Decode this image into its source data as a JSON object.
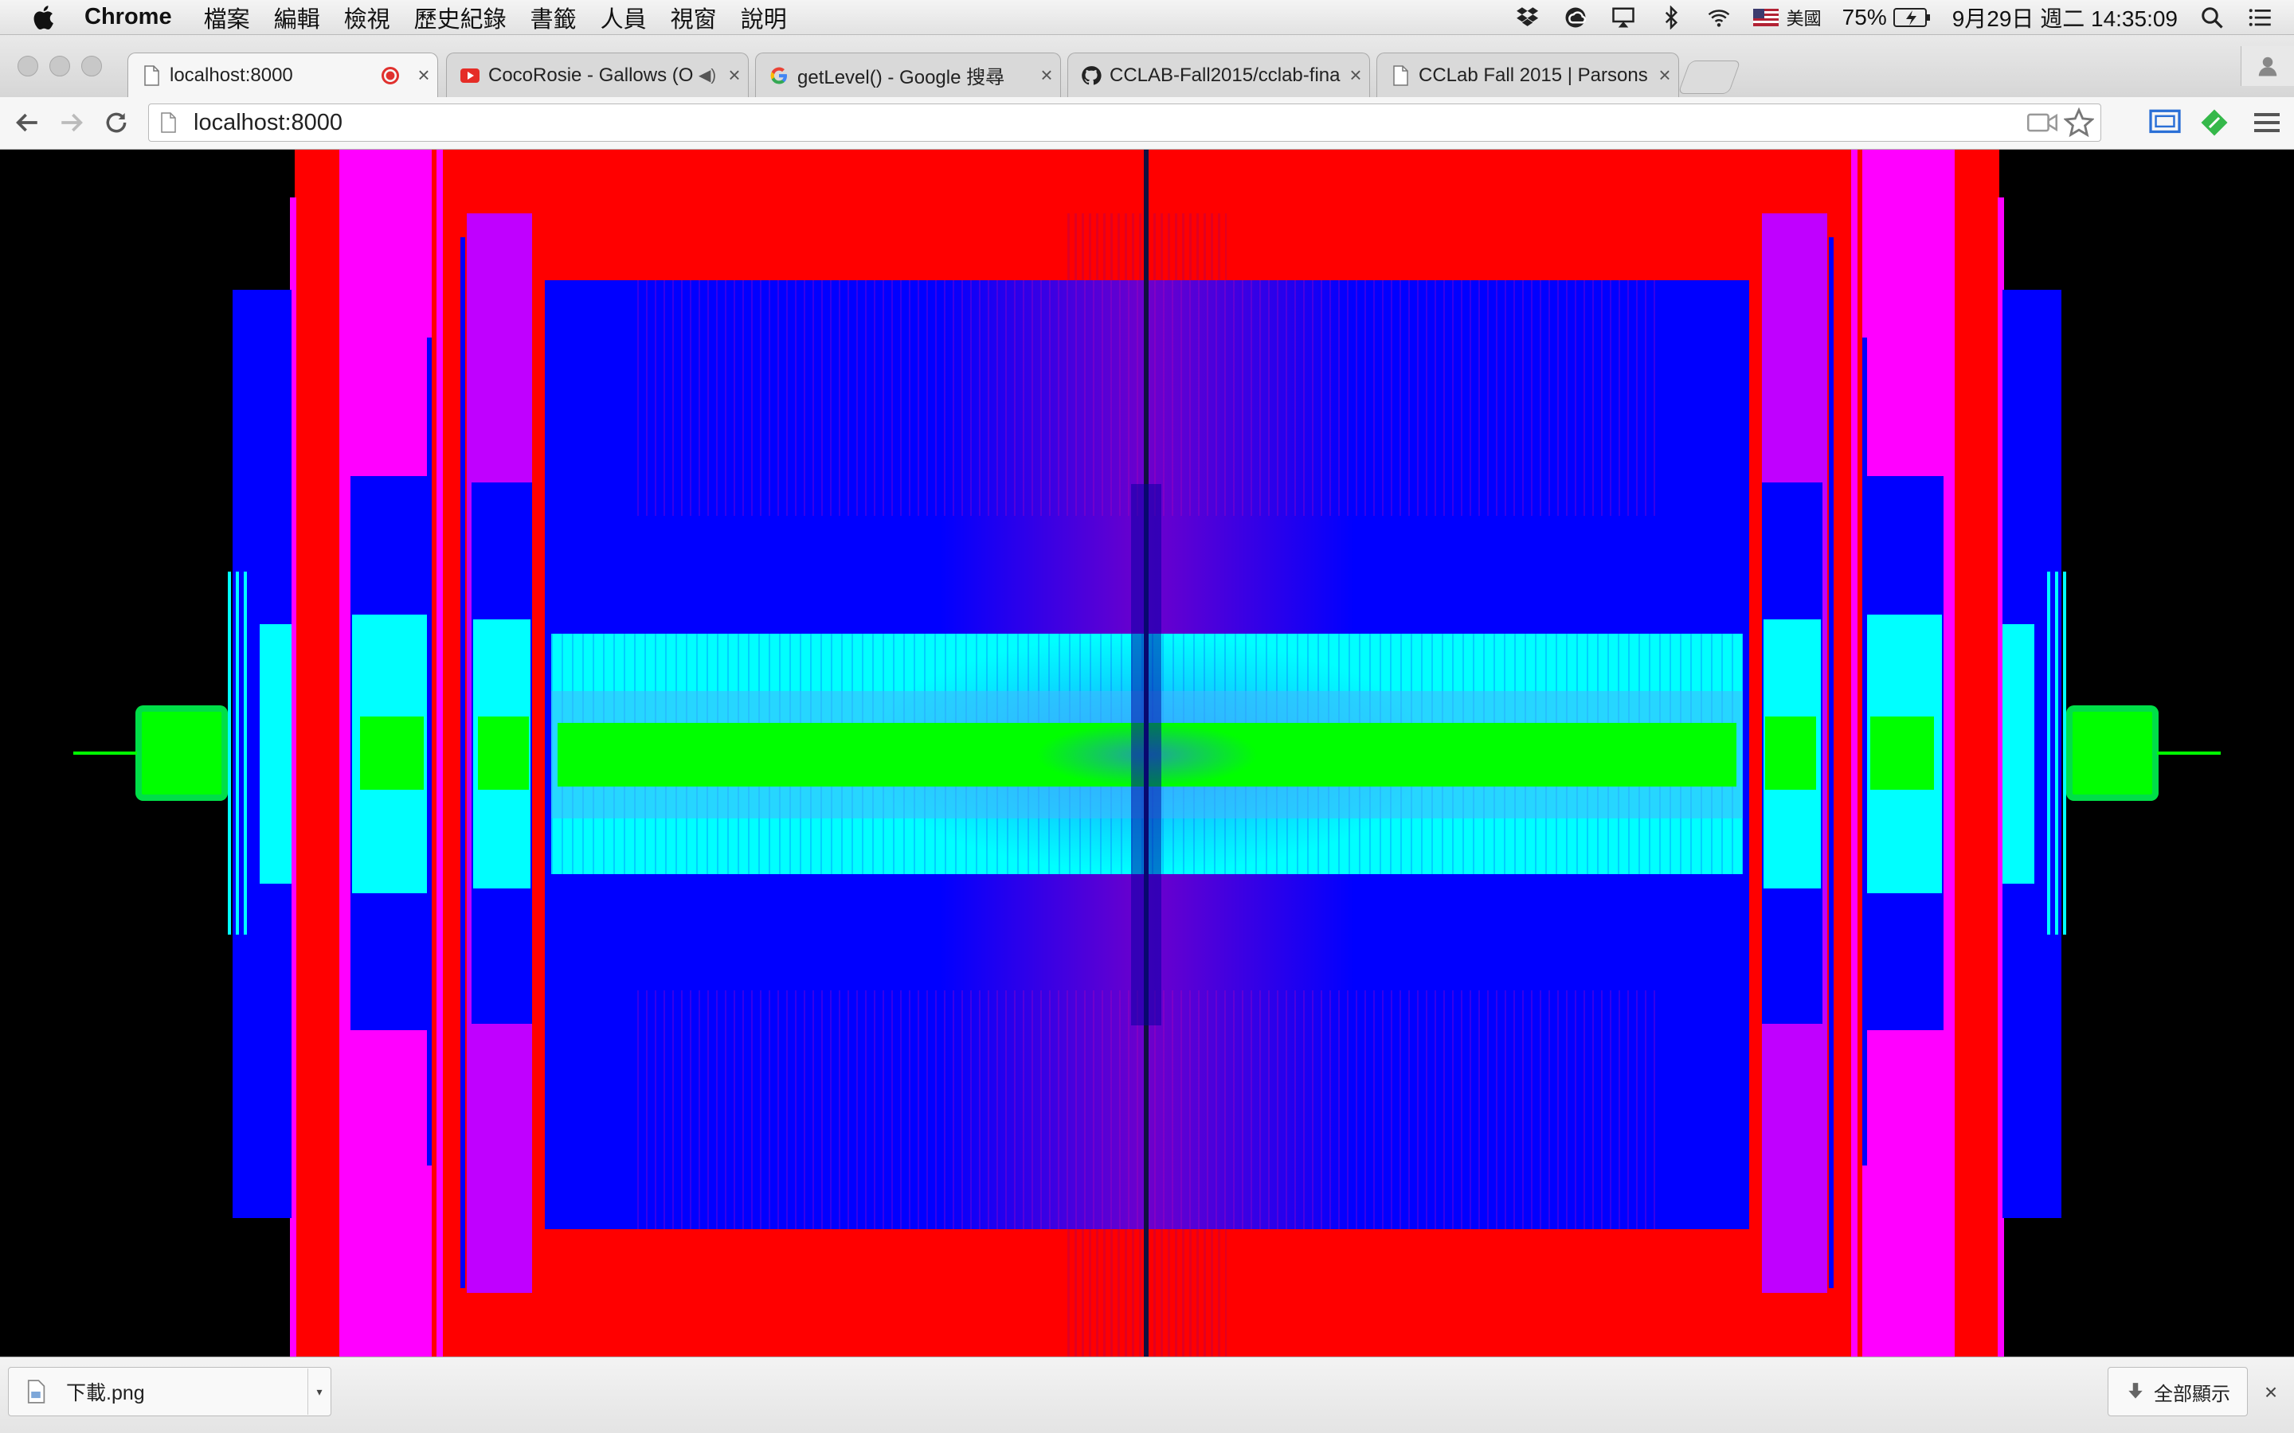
{
  "menubar": {
    "app_name": "Chrome",
    "menus": [
      "檔案",
      "編輯",
      "檢視",
      "歷史紀錄",
      "書籤",
      "人員",
      "視窗",
      "說明"
    ],
    "input_source": "美國",
    "battery": "75%",
    "datetime": "9月29日 週二 14:35:09"
  },
  "tabs": [
    {
      "title": "localhost:8000",
      "icon": "page-icon",
      "active": true,
      "recording": true
    },
    {
      "title": "CocoRosie - Gallows (O",
      "icon": "youtube-icon",
      "audio": true
    },
    {
      "title": "getLevel() - Google 搜尋",
      "icon": "google-icon"
    },
    {
      "title": "CCLAB-Fall2015/cclab-fina",
      "icon": "github-icon"
    },
    {
      "title": "CCLab Fall 2015 | Parsons",
      "icon": "page-icon"
    }
  ],
  "omnibox": {
    "url": "localhost:8000"
  },
  "downloads": {
    "file_name": "下載.png",
    "show_all_label": "全部顯示"
  },
  "colors": {
    "red": "#ff0000",
    "magenta": "#ff00ff",
    "purple": "#c000ff",
    "blue": "#0000ff",
    "cyan": "#00ffff",
    "green": "#00ff00"
  }
}
